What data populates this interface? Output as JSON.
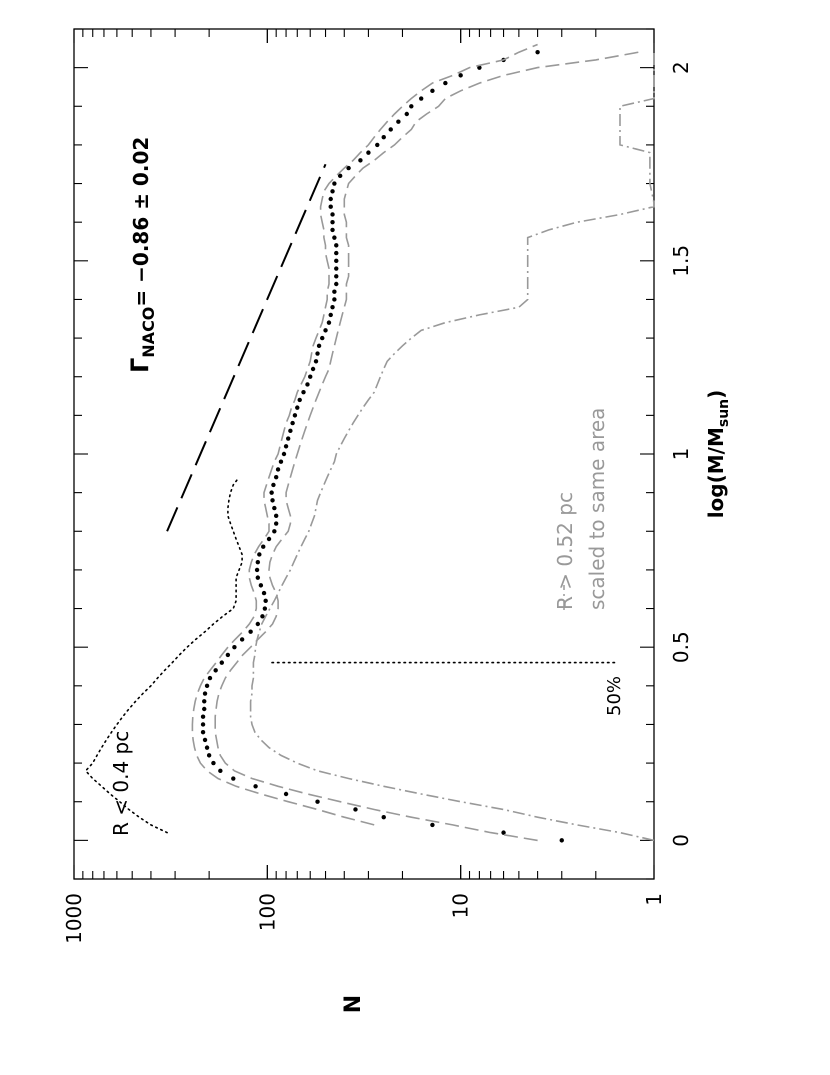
{
  "chart_data": {
    "type": "line",
    "orientation": "rotated-90-clockwise",
    "xlabel": "log(M/M",
    "xlabel_sub": "sun",
    "xlabel_close": ")",
    "ylabel": "N",
    "xlim": [
      -0.1,
      2.1
    ],
    "ylim": [
      1,
      1000
    ],
    "yscale": "log",
    "x_ticks": [
      {
        "value": 0,
        "label": "0"
      },
      {
        "value": 0.5,
        "label": "0.5"
      },
      {
        "value": 1,
        "label": "1"
      },
      {
        "value": 1.5,
        "label": "1.5"
      },
      {
        "value": 2,
        "label": "2"
      }
    ],
    "y_ticks": [
      {
        "value": 1,
        "label": "1"
      },
      {
        "value": 10,
        "label": "10"
      },
      {
        "value": 100,
        "label": "100"
      },
      {
        "value": 1000,
        "label": "1000"
      }
    ],
    "annotations": {
      "inner_label": "R < 0.4  pc",
      "outer_label_line1": "R > 0.52  pc",
      "outer_label_line2": "scaled to same area",
      "completeness_label": "50%",
      "completeness_x": 0.46,
      "gamma_symbol": "Γ",
      "gamma_sub": "NACO",
      "gamma_value": "=  −0.86 ± 0.02"
    },
    "slope_line": {
      "x": [
        0.8,
        1.75
      ],
      "y": [
        330,
        50
      ]
    },
    "colors": {
      "main": "#000000",
      "secondary": "#999999"
    },
    "series": [
      {
        "style": "dots",
        "x": [
          0.0,
          0.02,
          0.04,
          0.06,
          0.08,
          0.1,
          0.12,
          0.14,
          0.16,
          0.18,
          0.2,
          0.22,
          0.24,
          0.26,
          0.28,
          0.3,
          0.32,
          0.34,
          0.36,
          0.38,
          0.4,
          0.42,
          0.44,
          0.46,
          0.48,
          0.5,
          0.52,
          0.54,
          0.56,
          0.58,
          0.6,
          0.62,
          0.64,
          0.66,
          0.68,
          0.7,
          0.72,
          0.74,
          0.76,
          0.78,
          0.8,
          0.82,
          0.84,
          0.86,
          0.88,
          0.9,
          0.92,
          0.94,
          0.96,
          0.98,
          1.0,
          1.02,
          1.04,
          1.06,
          1.08,
          1.1,
          1.12,
          1.14,
          1.16,
          1.18,
          1.2,
          1.22,
          1.24,
          1.26,
          1.28,
          1.3,
          1.32,
          1.34,
          1.36,
          1.38,
          1.4,
          1.42,
          1.44,
          1.46,
          1.48,
          1.5,
          1.52,
          1.54,
          1.56,
          1.58,
          1.6,
          1.62,
          1.64,
          1.66,
          1.68,
          1.7,
          1.72,
          1.74,
          1.76,
          1.78,
          1.8,
          1.82,
          1.84,
          1.86,
          1.88,
          1.9,
          1.92,
          1.94,
          1.96,
          1.98,
          2.0,
          2.02,
          2.04
        ],
        "y": [
          3,
          6,
          14,
          25,
          35,
          55,
          80,
          115,
          150,
          175,
          190,
          200,
          205,
          210,
          215,
          215,
          215,
          212,
          212,
          210,
          205,
          198,
          185,
          172,
          160,
          148,
          135,
          122,
          112,
          106,
          103,
          102,
          104,
          108,
          112,
          113,
          112,
          110,
          105,
          98,
          92,
          90,
          90,
          92,
          94,
          95,
          93,
          90,
          88,
          85,
          82,
          80,
          78,
          76,
          74,
          72,
          70,
          68,
          65,
          62,
          60,
          58,
          56,
          55,
          54,
          52,
          50,
          48,
          47,
          46,
          45,
          45,
          44,
          44,
          44,
          44,
          44,
          44,
          45,
          46,
          46,
          46,
          47,
          47,
          46,
          45,
          42,
          38,
          33,
          30,
          27,
          25,
          23,
          21,
          19,
          18,
          16,
          14,
          12,
          10,
          8,
          6,
          4
        ]
      },
      {
        "style": "long-dash",
        "color": "#999999",
        "x": [
          0.04,
          0.06,
          0.08,
          0.1,
          0.12,
          0.14,
          0.16,
          0.18,
          0.2,
          0.22,
          0.24,
          0.26,
          0.28,
          0.3,
          0.32,
          0.34,
          0.36,
          0.38,
          0.4,
          0.42,
          0.44,
          0.46,
          0.48,
          0.5,
          0.52,
          0.54,
          0.56,
          0.58,
          0.6,
          0.62,
          0.64,
          0.66,
          0.68,
          0.7,
          0.72,
          0.74,
          0.76,
          0.78,
          0.8,
          0.82,
          0.84,
          0.86,
          0.88,
          0.9,
          0.92,
          0.94,
          0.96,
          0.98,
          1.0,
          1.02,
          1.04,
          1.06,
          1.08,
          1.1,
          1.12,
          1.14,
          1.16,
          1.18,
          1.2,
          1.22,
          1.24,
          1.26,
          1.28,
          1.3,
          1.32,
          1.34,
          1.36,
          1.38,
          1.4,
          1.42,
          1.44,
          1.46,
          1.48,
          1.5,
          1.52,
          1.54,
          1.56,
          1.58,
          1.6,
          1.62,
          1.64,
          1.66,
          1.68,
          1.7,
          1.72,
          1.74,
          1.76,
          1.78,
          1.8,
          1.82,
          1.84,
          1.86,
          1.88,
          1.9,
          1.92,
          1.94,
          1.96,
          1.98,
          2.0,
          2.02,
          2.04,
          2.06
        ],
        "y": [
          28,
          40,
          55,
          78,
          108,
          145,
          180,
          205,
          222,
          232,
          238,
          242,
          244,
          244,
          243,
          240,
          236,
          230,
          222,
          212,
          198,
          184,
          172,
          160,
          147,
          134,
          124,
          117,
          114,
          114,
          117,
          121,
          124,
          124,
          121,
          117,
          111,
          104,
          98,
          98,
          100,
          102,
          104,
          104,
          101,
          98,
          95,
          92,
          88,
          86,
          84,
          82,
          80,
          77,
          75,
          72,
          70,
          67,
          64,
          62,
          60,
          59,
          58,
          56,
          54,
          52,
          51,
          50,
          49,
          49,
          48,
          48,
          48,
          49,
          50,
          50,
          51,
          51,
          52,
          53,
          53,
          52,
          51,
          48,
          44,
          40,
          36,
          33,
          30,
          28,
          26,
          24,
          22,
          20,
          18,
          16,
          14,
          11,
          9,
          6,
          5,
          4
        ]
      },
      {
        "style": "long-dash",
        "color": "#999999",
        "x": [
          0.0,
          0.02,
          0.04,
          0.06,
          0.08,
          0.1,
          0.12,
          0.14,
          0.16,
          0.18,
          0.2,
          0.22,
          0.24,
          0.26,
          0.28,
          0.3,
          0.32,
          0.34,
          0.36,
          0.38,
          0.4,
          0.42,
          0.44,
          0.46,
          0.48,
          0.5,
          0.52,
          0.54,
          0.56,
          0.58,
          0.6,
          0.62,
          0.64,
          0.66,
          0.68,
          0.7,
          0.72,
          0.74,
          0.76,
          0.78,
          0.8,
          0.82,
          0.84,
          0.86,
          0.88,
          0.9,
          0.92,
          0.94,
          0.96,
          0.98,
          1.0,
          1.02,
          1.04,
          1.06,
          1.08,
          1.1,
          1.12,
          1.14,
          1.16,
          1.18,
          1.2,
          1.22,
          1.24,
          1.26,
          1.28,
          1.3,
          1.32,
          1.34,
          1.36,
          1.38,
          1.4,
          1.42,
          1.44,
          1.46,
          1.48,
          1.5,
          1.52,
          1.54,
          1.56,
          1.58,
          1.6,
          1.62,
          1.64,
          1.66,
          1.68,
          1.7,
          1.72,
          1.74,
          1.76,
          1.78,
          1.8,
          1.82,
          1.84,
          1.86,
          1.88,
          1.9,
          1.92,
          1.94,
          1.96,
          1.98,
          2.0,
          2.02,
          2.04
        ],
        "y": [
          4,
          7,
          11,
          18,
          28,
          42,
          62,
          88,
          120,
          148,
          165,
          175,
          180,
          183,
          186,
          186,
          186,
          184,
          182,
          178,
          172,
          165,
          155,
          144,
          134,
          122,
          112,
          102,
          94,
          90,
          88,
          88,
          90,
          94,
          97,
          98,
          97,
          94,
          90,
          84,
          78,
          76,
          76,
          78,
          80,
          80,
          78,
          76,
          74,
          72,
          70,
          68,
          66,
          64,
          62,
          60,
          58,
          56,
          54,
          52,
          50,
          48,
          47,
          46,
          45,
          44,
          43,
          42,
          41,
          40,
          39,
          39,
          39,
          38,
          38,
          38,
          38,
          38,
          39,
          39,
          39,
          40,
          40,
          40,
          39,
          38,
          35,
          32,
          28,
          25,
          22,
          20,
          18,
          17,
          15,
          13,
          12,
          10,
          8,
          6,
          4,
          2,
          1.2
        ]
      },
      {
        "style": "dash-dot",
        "color": "#999999",
        "x": [
          0.0,
          0.02,
          0.04,
          0.06,
          0.08,
          0.1,
          0.12,
          0.14,
          0.16,
          0.18,
          0.2,
          0.22,
          0.24,
          0.26,
          0.28,
          0.3,
          0.32,
          0.34,
          0.36,
          0.38,
          0.4,
          0.42,
          0.44,
          0.46,
          0.48,
          0.5,
          0.52,
          0.54,
          0.56,
          0.58,
          0.6,
          0.62,
          0.64,
          0.66,
          0.68,
          0.7,
          0.72,
          0.74,
          0.76,
          0.78,
          0.8,
          0.82,
          0.84,
          0.86,
          0.88,
          0.9,
          0.92,
          0.94,
          0.96,
          0.98,
          1.0,
          1.02,
          1.04,
          1.06,
          1.08,
          1.1,
          1.12,
          1.14,
          1.16,
          1.18,
          1.2,
          1.22,
          1.24,
          1.26,
          1.28,
          1.3,
          1.32,
          1.34,
          1.36,
          1.38,
          1.4,
          1.42,
          1.44,
          1.46,
          1.48,
          1.5,
          1.52,
          1.54,
          1.56,
          1.58,
          1.6,
          1.62,
          1.64,
          1.65,
          1.7,
          1.72,
          1.74,
          1.76,
          1.78,
          1.8,
          1.82,
          1.84,
          1.86,
          1.88,
          1.9,
          1.92,
          1.94,
          1.96,
          1.98,
          2.0,
          2.02,
          2.04
        ],
        "y": [
          1,
          1.5,
          2.5,
          4,
          6,
          10,
          16,
          25,
          38,
          55,
          70,
          85,
          98,
          108,
          116,
          120,
          122,
          122,
          122,
          120,
          120,
          118,
          118,
          118,
          116,
          115,
          113,
          110,
          107,
          102,
          97,
          92,
          88,
          84,
          80,
          76,
          73,
          70,
          67,
          64,
          61,
          59,
          57,
          56,
          55,
          53,
          51,
          49,
          47,
          45,
          44,
          42,
          40,
          38,
          36,
          34,
          32,
          30,
          28,
          27,
          26,
          25,
          24,
          22,
          20,
          18,
          16,
          12,
          8,
          5,
          4.5,
          4.5,
          4.5,
          4.5,
          4.5,
          4.5,
          4.5,
          4.5,
          4.5,
          3.5,
          2.5,
          1.5,
          1,
          1,
          1.05,
          1.05,
          1.05,
          1.05,
          1.05,
          1.5,
          1.5,
          1.5,
          1.5,
          1.5,
          1.5,
          1,
          1,
          1,
          1,
          1,
          1,
          1
        ]
      },
      {
        "style": "fine-dots",
        "x": [
          0.02,
          0.04,
          0.06,
          0.08,
          0.1,
          0.12,
          0.14,
          0.16,
          0.18,
          0.2,
          0.22,
          0.24,
          0.26,
          0.28,
          0.3,
          0.32,
          0.34,
          0.36,
          0.38,
          0.4,
          0.42,
          0.44,
          0.46,
          0.48,
          0.5,
          0.52,
          0.54,
          0.56,
          0.58,
          0.6,
          0.62,
          0.64,
          0.66,
          0.68,
          0.7,
          0.72,
          0.74,
          0.76,
          0.78,
          0.8,
          0.82,
          0.84,
          0.86,
          0.88,
          0.9,
          0.92,
          0.94
        ],
        "y": [
          330,
          400,
          460,
          520,
          580,
          650,
          720,
          800,
          870,
          800,
          760,
          720,
          680,
          640,
          600,
          560,
          520,
          480,
          440,
          400,
          370,
          340,
          310,
          285,
          260,
          235,
          210,
          190,
          170,
          150,
          145,
          145,
          145,
          145,
          140,
          135,
          135,
          140,
          145,
          150,
          155,
          160,
          160,
          158,
          155,
          150,
          140
        ]
      },
      {
        "style": "fine-dots",
        "x": [
          0.46,
          0.46
        ],
        "y": [
          1.6,
          95
        ]
      }
    ]
  }
}
